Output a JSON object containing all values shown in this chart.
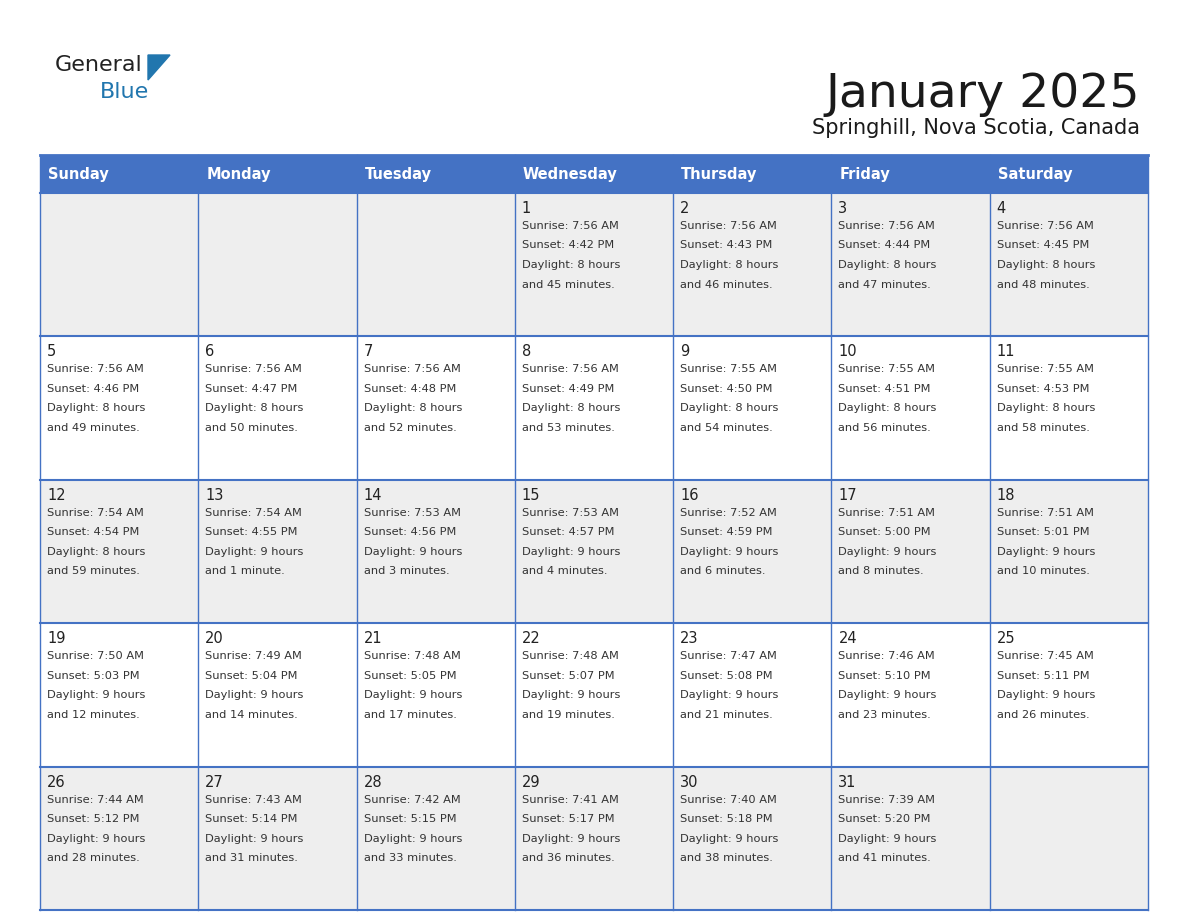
{
  "title": "January 2025",
  "subtitle": "Springhill, Nova Scotia, Canada",
  "header_color": "#4472C4",
  "header_text_color": "#FFFFFF",
  "row_color_odd": "#EEEEEE",
  "row_color_even": "#FFFFFF",
  "border_color": "#4472C4",
  "text_color": "#333333",
  "logo_general_color": "#222222",
  "logo_blue_color": "#2176AE",
  "logo_triangle_color": "#2176AE",
  "days_of_week": [
    "Sunday",
    "Monday",
    "Tuesday",
    "Wednesday",
    "Thursday",
    "Friday",
    "Saturday"
  ],
  "weeks": [
    [
      {
        "day": "",
        "sunrise": "",
        "sunset": "",
        "daylight": ""
      },
      {
        "day": "",
        "sunrise": "",
        "sunset": "",
        "daylight": ""
      },
      {
        "day": "",
        "sunrise": "",
        "sunset": "",
        "daylight": ""
      },
      {
        "day": "1",
        "sunrise": "7:56 AM",
        "sunset": "4:42 PM",
        "daylight": "8 hours\nand 45 minutes."
      },
      {
        "day": "2",
        "sunrise": "7:56 AM",
        "sunset": "4:43 PM",
        "daylight": "8 hours\nand 46 minutes."
      },
      {
        "day": "3",
        "sunrise": "7:56 AM",
        "sunset": "4:44 PM",
        "daylight": "8 hours\nand 47 minutes."
      },
      {
        "day": "4",
        "sunrise": "7:56 AM",
        "sunset": "4:45 PM",
        "daylight": "8 hours\nand 48 minutes."
      }
    ],
    [
      {
        "day": "5",
        "sunrise": "7:56 AM",
        "sunset": "4:46 PM",
        "daylight": "8 hours\nand 49 minutes."
      },
      {
        "day": "6",
        "sunrise": "7:56 AM",
        "sunset": "4:47 PM",
        "daylight": "8 hours\nand 50 minutes."
      },
      {
        "day": "7",
        "sunrise": "7:56 AM",
        "sunset": "4:48 PM",
        "daylight": "8 hours\nand 52 minutes."
      },
      {
        "day": "8",
        "sunrise": "7:56 AM",
        "sunset": "4:49 PM",
        "daylight": "8 hours\nand 53 minutes."
      },
      {
        "day": "9",
        "sunrise": "7:55 AM",
        "sunset": "4:50 PM",
        "daylight": "8 hours\nand 54 minutes."
      },
      {
        "day": "10",
        "sunrise": "7:55 AM",
        "sunset": "4:51 PM",
        "daylight": "8 hours\nand 56 minutes."
      },
      {
        "day": "11",
        "sunrise": "7:55 AM",
        "sunset": "4:53 PM",
        "daylight": "8 hours\nand 58 minutes."
      }
    ],
    [
      {
        "day": "12",
        "sunrise": "7:54 AM",
        "sunset": "4:54 PM",
        "daylight": "8 hours\nand 59 minutes."
      },
      {
        "day": "13",
        "sunrise": "7:54 AM",
        "sunset": "4:55 PM",
        "daylight": "9 hours\nand 1 minute."
      },
      {
        "day": "14",
        "sunrise": "7:53 AM",
        "sunset": "4:56 PM",
        "daylight": "9 hours\nand 3 minutes."
      },
      {
        "day": "15",
        "sunrise": "7:53 AM",
        "sunset": "4:57 PM",
        "daylight": "9 hours\nand 4 minutes."
      },
      {
        "day": "16",
        "sunrise": "7:52 AM",
        "sunset": "4:59 PM",
        "daylight": "9 hours\nand 6 minutes."
      },
      {
        "day": "17",
        "sunrise": "7:51 AM",
        "sunset": "5:00 PM",
        "daylight": "9 hours\nand 8 minutes."
      },
      {
        "day": "18",
        "sunrise": "7:51 AM",
        "sunset": "5:01 PM",
        "daylight": "9 hours\nand 10 minutes."
      }
    ],
    [
      {
        "day": "19",
        "sunrise": "7:50 AM",
        "sunset": "5:03 PM",
        "daylight": "9 hours\nand 12 minutes."
      },
      {
        "day": "20",
        "sunrise": "7:49 AM",
        "sunset": "5:04 PM",
        "daylight": "9 hours\nand 14 minutes."
      },
      {
        "day": "21",
        "sunrise": "7:48 AM",
        "sunset": "5:05 PM",
        "daylight": "9 hours\nand 17 minutes."
      },
      {
        "day": "22",
        "sunrise": "7:48 AM",
        "sunset": "5:07 PM",
        "daylight": "9 hours\nand 19 minutes."
      },
      {
        "day": "23",
        "sunrise": "7:47 AM",
        "sunset": "5:08 PM",
        "daylight": "9 hours\nand 21 minutes."
      },
      {
        "day": "24",
        "sunrise": "7:46 AM",
        "sunset": "5:10 PM",
        "daylight": "9 hours\nand 23 minutes."
      },
      {
        "day": "25",
        "sunrise": "7:45 AM",
        "sunset": "5:11 PM",
        "daylight": "9 hours\nand 26 minutes."
      }
    ],
    [
      {
        "day": "26",
        "sunrise": "7:44 AM",
        "sunset": "5:12 PM",
        "daylight": "9 hours\nand 28 minutes."
      },
      {
        "day": "27",
        "sunrise": "7:43 AM",
        "sunset": "5:14 PM",
        "daylight": "9 hours\nand 31 minutes."
      },
      {
        "day": "28",
        "sunrise": "7:42 AM",
        "sunset": "5:15 PM",
        "daylight": "9 hours\nand 33 minutes."
      },
      {
        "day": "29",
        "sunrise": "7:41 AM",
        "sunset": "5:17 PM",
        "daylight": "9 hours\nand 36 minutes."
      },
      {
        "day": "30",
        "sunrise": "7:40 AM",
        "sunset": "5:18 PM",
        "daylight": "9 hours\nand 38 minutes."
      },
      {
        "day": "31",
        "sunrise": "7:39 AM",
        "sunset": "5:20 PM",
        "daylight": "9 hours\nand 41 minutes."
      },
      {
        "day": "",
        "sunrise": "",
        "sunset": "",
        "daylight": ""
      }
    ]
  ]
}
